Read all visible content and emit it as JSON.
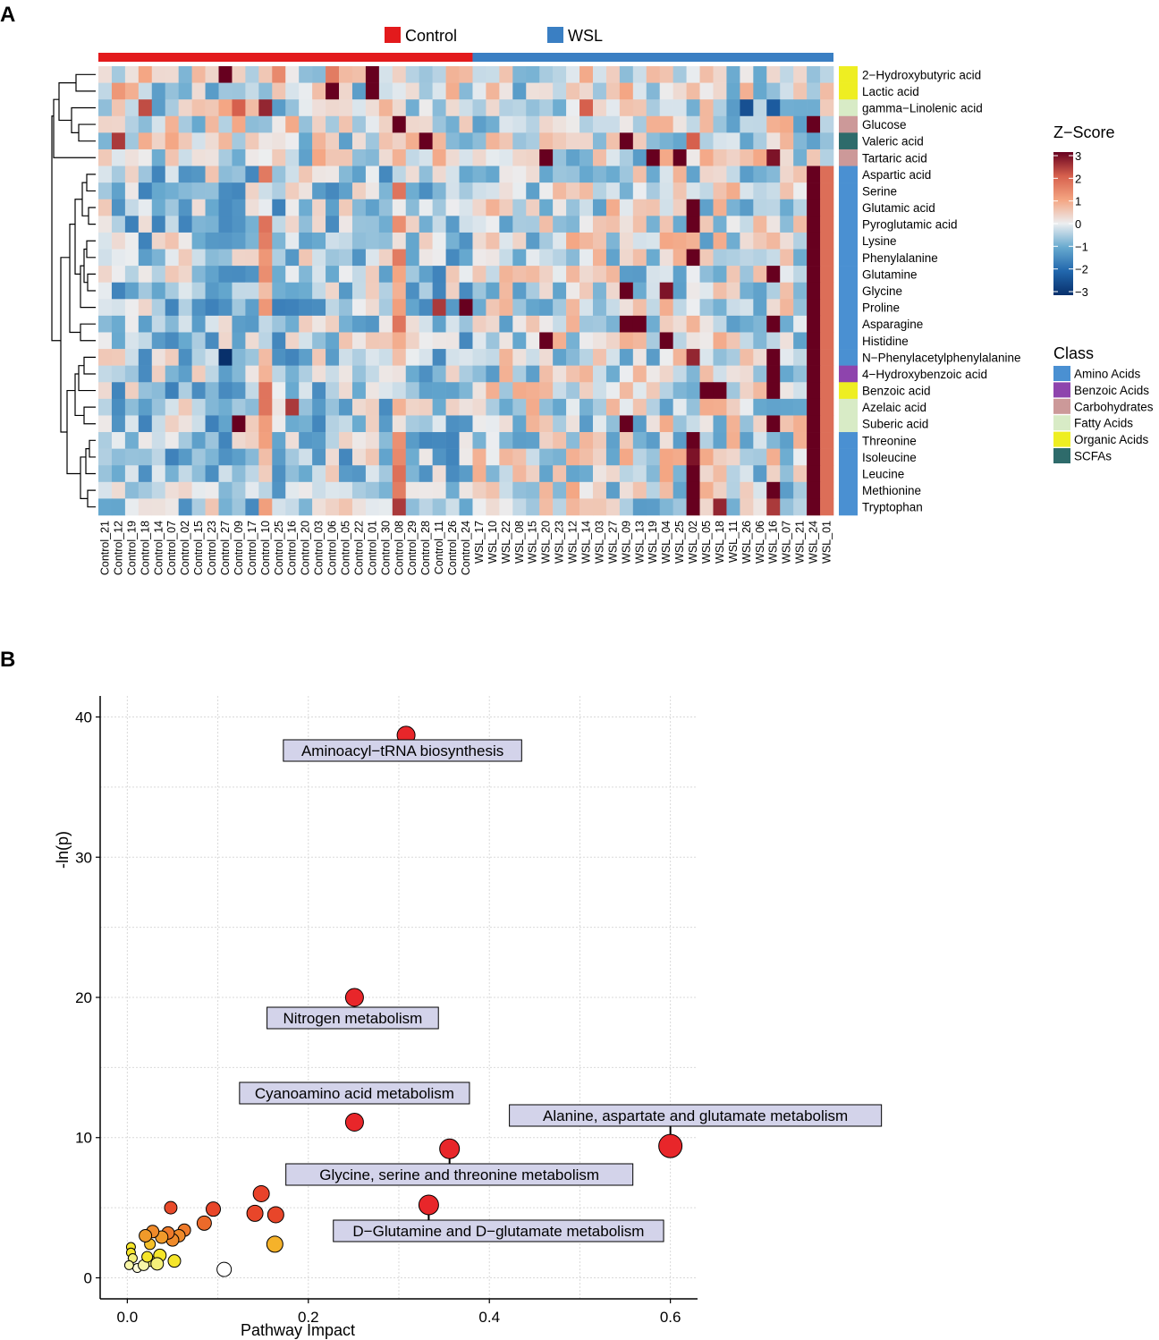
{
  "panels": {
    "a_label": "A",
    "b_label": "B"
  },
  "colors": {
    "control": "#e31a1c",
    "wsl": "#3a7fc3",
    "class_colors": {
      "Amino Acids": "#4a90d2",
      "Benzoic Acids": "#8e44ad",
      "Carbohydrates": "#cc9999",
      "Fatty Acids": "#d8ebc6",
      "Organic Acids": "#eeee22",
      "SCFAs": "#2e6b6b"
    },
    "label_box": "#d3d3ea"
  },
  "chart_data": [
    {
      "type": "heatmap",
      "title": "",
      "groups": [
        {
          "name": "Control",
          "color": "#e31a1c"
        },
        {
          "name": "WSL",
          "color": "#3a7fc3"
        }
      ],
      "samples": [
        "Control_21",
        "Control_12",
        "Control_19",
        "Control_18",
        "Control_14",
        "Control_07",
        "Control_02",
        "Control_15",
        "Control_23",
        "Control_27",
        "Control_09",
        "Control_17",
        "Control_10",
        "Control_25",
        "Control_16",
        "Control_20",
        "Control_03",
        "Control_06",
        "Control_05",
        "Control_22",
        "Control_01",
        "Control_30",
        "Control_08",
        "Control_29",
        "Control_28",
        "Control_11",
        "Control_26",
        "Control_24",
        "WSL_17",
        "WSL_10",
        "WSL_22",
        "WSL_08",
        "WSL_15",
        "WSL_20",
        "WSL_23",
        "WSL_12",
        "WSL_14",
        "WSL_03",
        "WSL_27",
        "WSL_09",
        "WSL_13",
        "WSL_19",
        "WSL_04",
        "WSL_25",
        "WSL_02",
        "WSL_05",
        "WSL_18",
        "WSL_11",
        "WSL_26",
        "WSL_06",
        "WSL_16",
        "WSL_07",
        "WSL_21",
        "WSL_24",
        "WSL_01"
      ],
      "metabolites": [
        "2−Hydroxybutyric acid",
        "Lactic acid",
        "gamma−Linolenic acid",
        "Glucose",
        "Valeric acid",
        "Tartaric acid",
        "Aspartic acid",
        "Serine",
        "Glutamic acid",
        "Pyroglutamic acid",
        "Lysine",
        "Phenylalanine",
        "Glutamine",
        "Glycine",
        "Proline",
        "Asparagine",
        "Histidine",
        "N−Phenylacetylphenylalanine",
        "4−Hydroxybenzoic acid",
        "Benzoic acid",
        "Azelaic acid",
        "Suberic acid",
        "Threonine",
        "Isoleucine",
        "Leucine",
        "Methionine",
        "Tryptophan"
      ],
      "classes": [
        "Organic Acids",
        "Organic Acids",
        "Fatty Acids",
        "Carbohydrates",
        "SCFAs",
        "Carbohydrates",
        "Amino Acids",
        "Amino Acids",
        "Amino Acids",
        "Amino Acids",
        "Amino Acids",
        "Amino Acids",
        "Amino Acids",
        "Amino Acids",
        "Amino Acids",
        "Amino Acids",
        "Amino Acids",
        "Amino Acids",
        "Benzoic Acids",
        "Organic Acids",
        "Fatty Acids",
        "Fatty Acids",
        "Amino Acids",
        "Amino Acids",
        "Amino Acids",
        "Amino Acids",
        "Amino Acids"
      ],
      "zscore_legend": {
        "title": "Z−Score",
        "ticks": [
          "3",
          "2",
          "1",
          "0",
          "−1",
          "−2",
          "−3"
        ],
        "range": [
          -3,
          3
        ]
      },
      "class_legend": {
        "title": "Class",
        "entries": [
          "Amino Acids",
          "Benzoic Acids",
          "Carbohydrates",
          "Fatty Acids",
          "Organic Acids",
          "SCFAs"
        ]
      },
      "hot_cells": [
        {
          "row": 0,
          "col": 9,
          "z": 3
        },
        {
          "row": 0,
          "col": 20,
          "z": 3
        },
        {
          "row": 0,
          "col": 17,
          "z": 1.6
        },
        {
          "row": 0,
          "col": 13,
          "z": 1.4
        },
        {
          "row": 1,
          "col": 17,
          "z": 3
        },
        {
          "row": 1,
          "col": 20,
          "z": 3
        },
        {
          "row": 1,
          "col": 1,
          "z": 1.2
        },
        {
          "row": 2,
          "col": 3,
          "z": 2.2
        },
        {
          "row": 2,
          "col": 12,
          "z": 2.6
        },
        {
          "row": 2,
          "col": 10,
          "z": 2
        },
        {
          "row": 2,
          "col": 48,
          "z": -2.4
        },
        {
          "row": 2,
          "col": 50,
          "z": -2.2
        },
        {
          "row": 2,
          "col": 36,
          "z": 2
        },
        {
          "row": 3,
          "col": 22,
          "z": 3
        },
        {
          "row": 3,
          "col": 53,
          "z": 3
        },
        {
          "row": 4,
          "col": 1,
          "z": 2.4
        },
        {
          "row": 4,
          "col": 24,
          "z": 3
        },
        {
          "row": 4,
          "col": 39,
          "z": 3
        },
        {
          "row": 4,
          "col": 44,
          "z": 2
        },
        {
          "row": 5,
          "col": 33,
          "z": 3
        },
        {
          "row": 5,
          "col": 41,
          "z": 3
        },
        {
          "row": 5,
          "col": 43,
          "z": 3
        },
        {
          "row": 5,
          "col": 50,
          "z": 2.8
        },
        {
          "row": 9,
          "col": 44,
          "z": 3
        },
        {
          "row": 8,
          "col": 44,
          "z": 3
        },
        {
          "row": 11,
          "col": 44,
          "z": 3
        },
        {
          "row": 12,
          "col": 50,
          "z": 3
        },
        {
          "row": 13,
          "col": 39,
          "z": 3
        },
        {
          "row": 13,
          "col": 42,
          "z": 2.8
        },
        {
          "row": 14,
          "col": 27,
          "z": 3
        },
        {
          "row": 14,
          "col": 25,
          "z": 2.4
        },
        {
          "row": 15,
          "col": 39,
          "z": 3
        },
        {
          "row": 15,
          "col": 40,
          "z": 3
        },
        {
          "row": 15,
          "col": 50,
          "z": 3
        },
        {
          "row": 15,
          "col": 53,
          "z": 3
        },
        {
          "row": 16,
          "col": 33,
          "z": 3
        },
        {
          "row": 16,
          "col": 42,
          "z": 3
        },
        {
          "row": 17,
          "col": 9,
          "z": -3
        },
        {
          "row": 17,
          "col": 44,
          "z": 2.6
        },
        {
          "row": 17,
          "col": 50,
          "z": 3
        },
        {
          "row": 18,
          "col": 50,
          "z": 3
        },
        {
          "row": 19,
          "col": 45,
          "z": 3
        },
        {
          "row": 19,
          "col": 46,
          "z": 3
        },
        {
          "row": 19,
          "col": 50,
          "z": 3
        },
        {
          "row": 20,
          "col": 14,
          "z": 2.4
        },
        {
          "row": 21,
          "col": 10,
          "z": 3
        },
        {
          "row": 21,
          "col": 39,
          "z": 3
        },
        {
          "row": 21,
          "col": 50,
          "z": 3
        },
        {
          "row": 22,
          "col": 44,
          "z": 3
        },
        {
          "row": 23,
          "col": 44,
          "z": 2.8
        },
        {
          "row": 24,
          "col": 44,
          "z": 3
        },
        {
          "row": 25,
          "col": 44,
          "z": 3
        },
        {
          "row": 25,
          "col": 50,
          "z": 3
        },
        {
          "row": 26,
          "col": 22,
          "z": 2.4
        },
        {
          "row": 26,
          "col": 44,
          "z": 3
        },
        {
          "row": 26,
          "col": 46,
          "z": 2.6
        },
        {
          "row": 26,
          "col": 50,
          "z": 2.4
        }
      ]
    },
    {
      "type": "scatter",
      "title": "",
      "xlabel": "Pathway Impact",
      "ylabel": "-ln(p)",
      "xlim": [
        -0.03,
        0.63
      ],
      "ylim": [
        -1.5,
        41.5
      ],
      "xticks": [
        0.0,
        0.2,
        0.4,
        0.6
      ],
      "xtick_labels": [
        "0.0",
        "0.2",
        "0.4",
        "0.6"
      ],
      "yticks": [
        0,
        10,
        20,
        30,
        40
      ],
      "ytick_labels": [
        "0",
        "10",
        "20",
        "30",
        "40"
      ],
      "grid": true,
      "points": [
        {
          "x": 0.308,
          "y": 38.7,
          "size": 10,
          "color": "#e8262a",
          "label": "Aminoacyl−tRNA biosynthesis",
          "label_pos": "below"
        },
        {
          "x": 0.251,
          "y": 20.0,
          "size": 10,
          "color": "#e8262a",
          "label": "Nitrogen metabolism",
          "label_pos": "below"
        },
        {
          "x": 0.251,
          "y": 11.1,
          "size": 10,
          "color": "#e8262a",
          "label": "Cyanoamino acid metabolism",
          "label_pos": "above"
        },
        {
          "x": 0.6,
          "y": 9.4,
          "size": 13,
          "color": "#e8262a",
          "label": "Alanine, aspartate and glutamate metabolism",
          "label_pos": "above"
        },
        {
          "x": 0.356,
          "y": 9.2,
          "size": 11,
          "color": "#e8262a",
          "label": "Glycine, serine and threonine metabolism",
          "label_pos": "below"
        },
        {
          "x": 0.333,
          "y": 5.2,
          "size": 11,
          "color": "#e8262a",
          "label": "D−Glutamine and D−glutamate metabolism",
          "label_pos": "below"
        },
        {
          "x": 0.148,
          "y": 6.0,
          "size": 9,
          "color": "#e8422a"
        },
        {
          "x": 0.141,
          "y": 4.6,
          "size": 9,
          "color": "#e8462a"
        },
        {
          "x": 0.164,
          "y": 4.5,
          "size": 9,
          "color": "#e8462a"
        },
        {
          "x": 0.095,
          "y": 4.9,
          "size": 8,
          "color": "#e8462a"
        },
        {
          "x": 0.048,
          "y": 5.0,
          "size": 7,
          "color": "#e84a2a"
        },
        {
          "x": 0.085,
          "y": 3.9,
          "size": 8,
          "color": "#ec6a2a"
        },
        {
          "x": 0.163,
          "y": 2.4,
          "size": 9,
          "color": "#f5b22a"
        },
        {
          "x": 0.063,
          "y": 3.4,
          "size": 7,
          "color": "#ee7a2a"
        },
        {
          "x": 0.057,
          "y": 3.0,
          "size": 7,
          "color": "#ef8a2a"
        },
        {
          "x": 0.05,
          "y": 2.7,
          "size": 7,
          "color": "#ef8a2a"
        },
        {
          "x": 0.045,
          "y": 3.2,
          "size": 7,
          "color": "#ee7a2a"
        },
        {
          "x": 0.038,
          "y": 2.9,
          "size": 7,
          "color": "#f09a2a"
        },
        {
          "x": 0.028,
          "y": 3.3,
          "size": 7,
          "color": "#ef8a2a"
        },
        {
          "x": 0.02,
          "y": 3.0,
          "size": 7,
          "color": "#f09a2a"
        },
        {
          "x": 0.025,
          "y": 2.4,
          "size": 6,
          "color": "#f5c02a"
        },
        {
          "x": 0.052,
          "y": 1.2,
          "size": 7,
          "color": "#f5e52a"
        },
        {
          "x": 0.036,
          "y": 1.6,
          "size": 7,
          "color": "#f5e52a"
        },
        {
          "x": 0.033,
          "y": 1.0,
          "size": 7,
          "color": "#f5f07a"
        },
        {
          "x": 0.025,
          "y": 1.2,
          "size": 6,
          "color": "#f5f07a"
        },
        {
          "x": 0.018,
          "y": 0.9,
          "size": 6,
          "color": "#f8f6a8"
        },
        {
          "x": 0.022,
          "y": 1.5,
          "size": 6,
          "color": "#f5e52a"
        },
        {
          "x": 0.004,
          "y": 2.2,
          "size": 5,
          "color": "#f5e52a"
        },
        {
          "x": 0.004,
          "y": 1.8,
          "size": 5,
          "color": "#f5e52a"
        },
        {
          "x": 0.006,
          "y": 1.4,
          "size": 5,
          "color": "#f5f07a"
        },
        {
          "x": 0.011,
          "y": 0.7,
          "size": 5,
          "color": "#fbfad8"
        },
        {
          "x": 0.002,
          "y": 0.9,
          "size": 5,
          "color": "#f8f6a8"
        },
        {
          "x": 0.107,
          "y": 0.6,
          "size": 8,
          "color": "#ffffff"
        }
      ]
    }
  ]
}
